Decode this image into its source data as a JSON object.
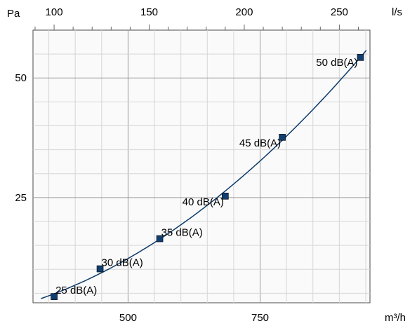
{
  "chart_data": {
    "type": "line",
    "title": "",
    "x_bottom": {
      "unit_label": "m³/h",
      "range": [
        320,
        958
      ],
      "ticks": [
        500,
        750
      ],
      "tick_labels": [
        "500",
        "750"
      ]
    },
    "x_top": {
      "unit_label": "l/s",
      "range": [
        88.9,
        266.1
      ],
      "ticks": [
        100,
        150,
        200,
        250
      ],
      "tick_labels": [
        "100",
        "150",
        "200",
        "250"
      ]
    },
    "y": {
      "unit_label": "Pa",
      "range": [
        3,
        60
      ],
      "ticks": [
        25,
        50
      ],
      "tick_labels": [
        "25",
        "50"
      ]
    },
    "grid": true,
    "series": [
      {
        "color": "#0f3e70",
        "points": [
          {
            "x": 360,
            "y": 4.3,
            "label": "25 dB(A)"
          },
          {
            "x": 447,
            "y": 10.1,
            "label": "30 dB(A)"
          },
          {
            "x": 560,
            "y": 16.4,
            "label": "35 dB(A)"
          },
          {
            "x": 684,
            "y": 25.3,
            "label": "40 dB(A)"
          },
          {
            "x": 792,
            "y": 37.6,
            "label": "45 dB(A)"
          },
          {
            "x": 940,
            "y": 54.3,
            "label": "50 dB(A)"
          }
        ]
      }
    ]
  }
}
